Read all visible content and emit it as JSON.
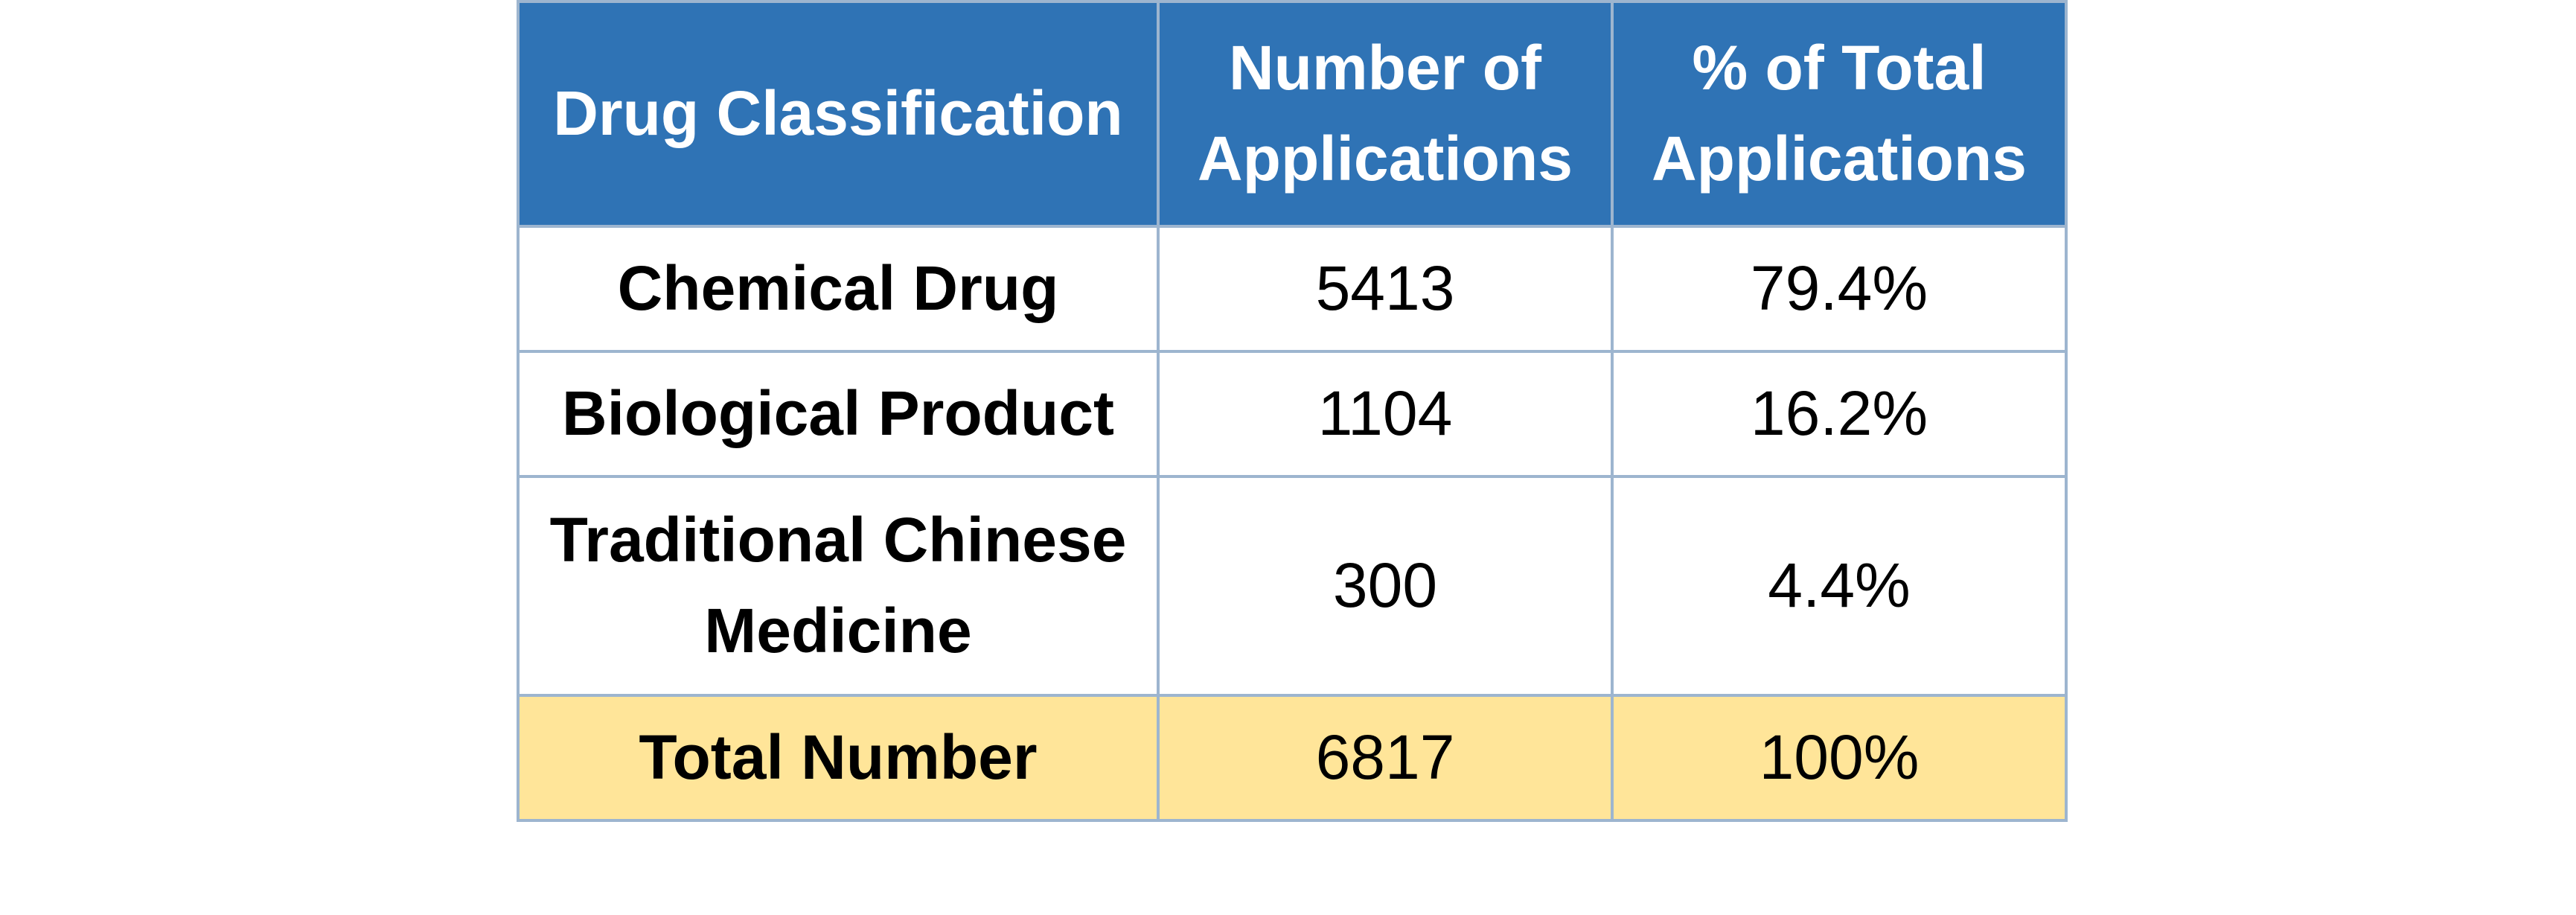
{
  "chart_data": {
    "type": "table",
    "columns": [
      "Drug Classification",
      "Number of Applications",
      "% of Total Applications"
    ],
    "rows": [
      {
        "classification": "Chemical Drug",
        "count": "5413",
        "percent": "79.4%"
      },
      {
        "classification": "Biological Product",
        "count": "1104",
        "percent": "16.2%"
      },
      {
        "classification": "Traditional Chinese Medicine",
        "count": "300",
        "percent": "4.4%"
      }
    ],
    "total": {
      "classification": "Total Number",
      "count": "6817",
      "percent": "100%"
    }
  },
  "colors": {
    "header_bg": "#2f73b5",
    "header_text": "#ffffff",
    "total_bg": "#ffe599",
    "border": "#9db5cf"
  }
}
